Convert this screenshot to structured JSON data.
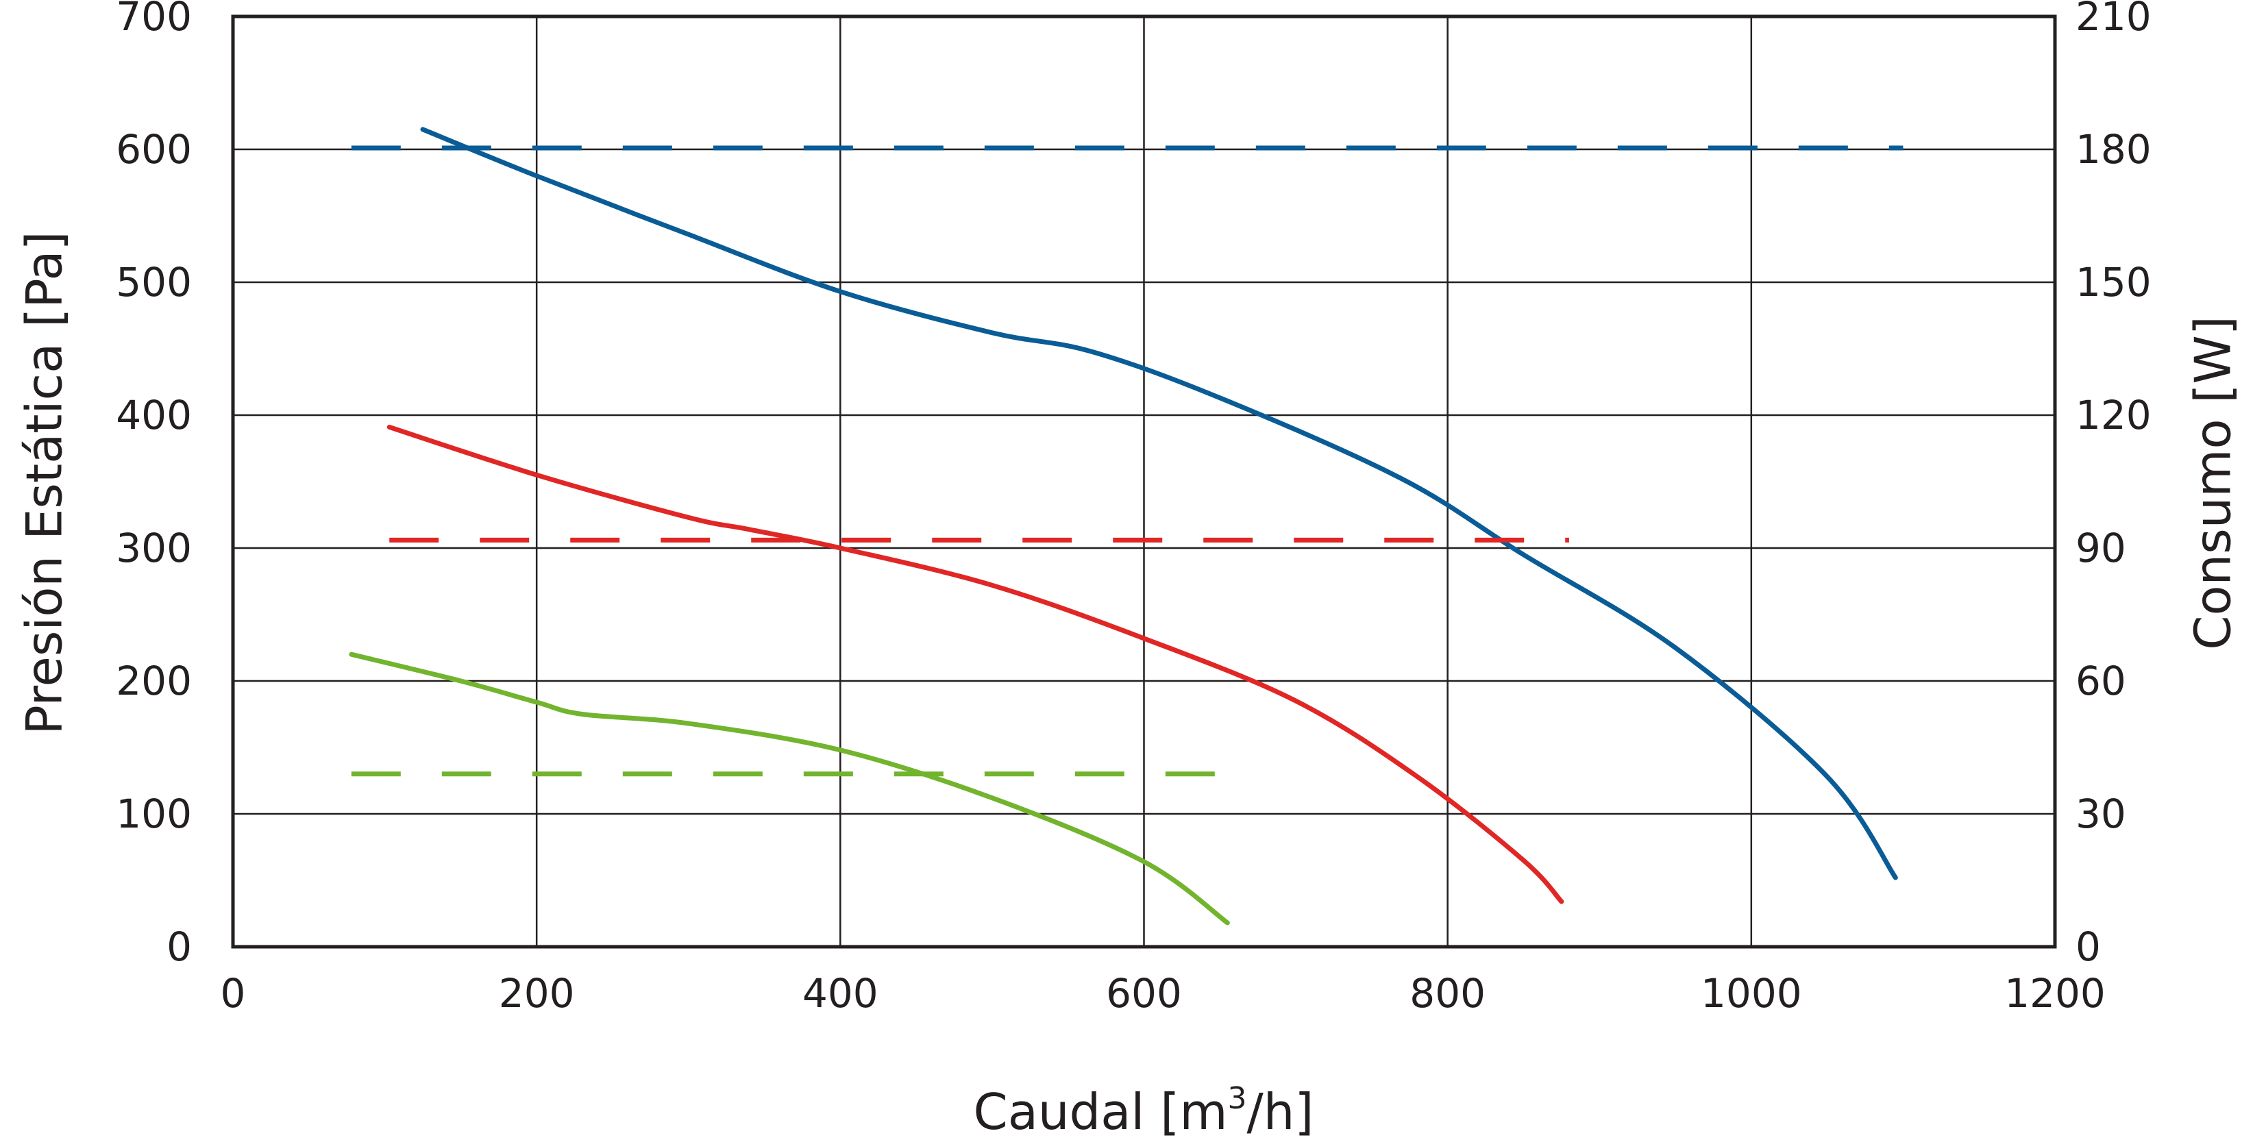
{
  "chart_data": {
    "type": "line",
    "xlabel": "Caudal [m³/h]",
    "xlabel_main": "Caudal [m",
    "xlabel_sup": "3",
    "xlabel_tail": "/h]",
    "ylabel_left": "Presión Estática [Pa]",
    "ylabel_right": "Consumo [W]",
    "xlim": [
      0,
      1200
    ],
    "ylim_left": [
      0,
      700
    ],
    "ylim_right": [
      0,
      210
    ],
    "x_ticks": [
      "0",
      "200",
      "400",
      "600",
      "800",
      "1000",
      "1200"
    ],
    "y_left_ticks": [
      "0",
      "100",
      "200",
      "300",
      "400",
      "500",
      "600",
      "700"
    ],
    "y_right_ticks": [
      "0",
      "30",
      "60",
      "90",
      "120",
      "150",
      "180",
      "210"
    ],
    "grid": true,
    "series": [
      {
        "name": "pressure-blue",
        "axis": "left",
        "style": "solid",
        "color": "#0a5c96",
        "points": [
          [
            125,
            615
          ],
          [
            200,
            580
          ],
          [
            300,
            536
          ],
          [
            400,
            493
          ],
          [
            500,
            462
          ],
          [
            565,
            448
          ],
          [
            650,
            413
          ],
          [
            770,
            352
          ],
          [
            850,
            295
          ],
          [
            950,
            225
          ],
          [
            1050,
            128
          ],
          [
            1095,
            52
          ]
        ]
      },
      {
        "name": "pressure-red",
        "axis": "left",
        "style": "solid",
        "color": "#e02725",
        "points": [
          [
            103,
            391
          ],
          [
            200,
            355
          ],
          [
            300,
            323
          ],
          [
            340,
            314
          ],
          [
            400,
            300
          ],
          [
            500,
            272
          ],
          [
            600,
            232
          ],
          [
            700,
            185
          ],
          [
            780,
            128
          ],
          [
            850,
            65
          ],
          [
            875,
            34
          ]
        ]
      },
      {
        "name": "pressure-green",
        "axis": "left",
        "style": "solid",
        "color": "#72b42e",
        "points": [
          [
            78,
            220
          ],
          [
            150,
            200
          ],
          [
            200,
            184
          ],
          [
            230,
            175
          ],
          [
            300,
            168
          ],
          [
            400,
            148
          ],
          [
            500,
            112
          ],
          [
            600,
            64
          ],
          [
            655,
            18
          ]
        ]
      },
      {
        "name": "power-blue",
        "axis": "right",
        "style": "dashed",
        "color": "#0a5c96",
        "points": [
          [
            78,
            180.3
          ],
          [
            1100,
            180.3
          ]
        ]
      },
      {
        "name": "power-red",
        "axis": "right",
        "style": "dashed",
        "color": "#e02725",
        "points": [
          [
            103,
            91.8
          ],
          [
            880,
            91.8
          ]
        ]
      },
      {
        "name": "power-green",
        "axis": "right",
        "style": "dashed",
        "color": "#72b42e",
        "points": [
          [
            78,
            39
          ],
          [
            660,
            39
          ]
        ]
      }
    ]
  }
}
